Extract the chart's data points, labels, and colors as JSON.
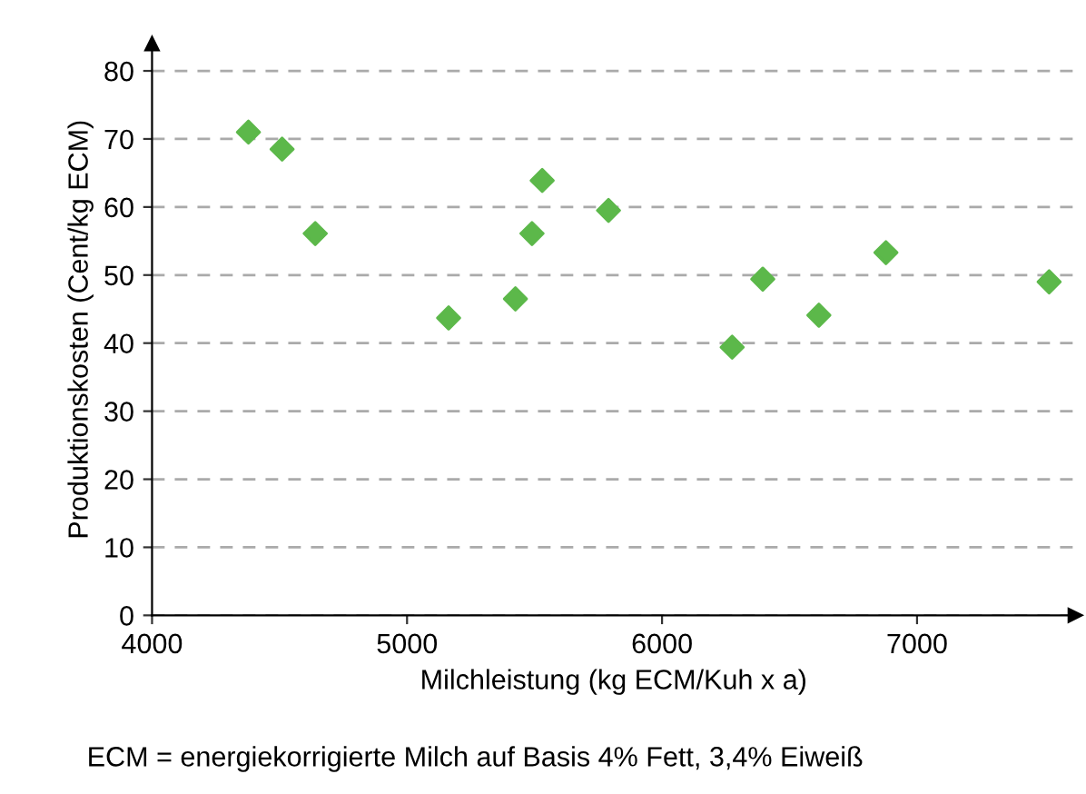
{
  "chart_data": {
    "type": "scatter",
    "xlabel": "Milchleistung (kg ECM/Kuh x a)",
    "ylabel": "Produktionskosten (Cent/kg ECM)",
    "x": [
      4378,
      4510,
      4640,
      5163,
      5425,
      5490,
      5530,
      5790,
      6275,
      6395,
      6615,
      6878,
      7518
    ],
    "values": [
      71.0,
      68.5,
      56.1,
      43.7,
      46.5,
      56.1,
      63.9,
      59.5,
      39.4,
      49.4,
      44.1,
      53.3,
      49.0
    ],
    "color": "#5cb84a",
    "marker": "diamond",
    "grid": "y",
    "xlim": [
      4000,
      7620
    ],
    "ylim": [
      0,
      84
    ],
    "xticks": [
      4000,
      5000,
      6000,
      7000
    ],
    "yticks": [
      0,
      10,
      20,
      30,
      40,
      50,
      60,
      70,
      80
    ],
    "annotations": [
      "ECM = energiekorrigierte Milch auf Basis 4% Fett, 3,4% Eiweiß"
    ]
  }
}
